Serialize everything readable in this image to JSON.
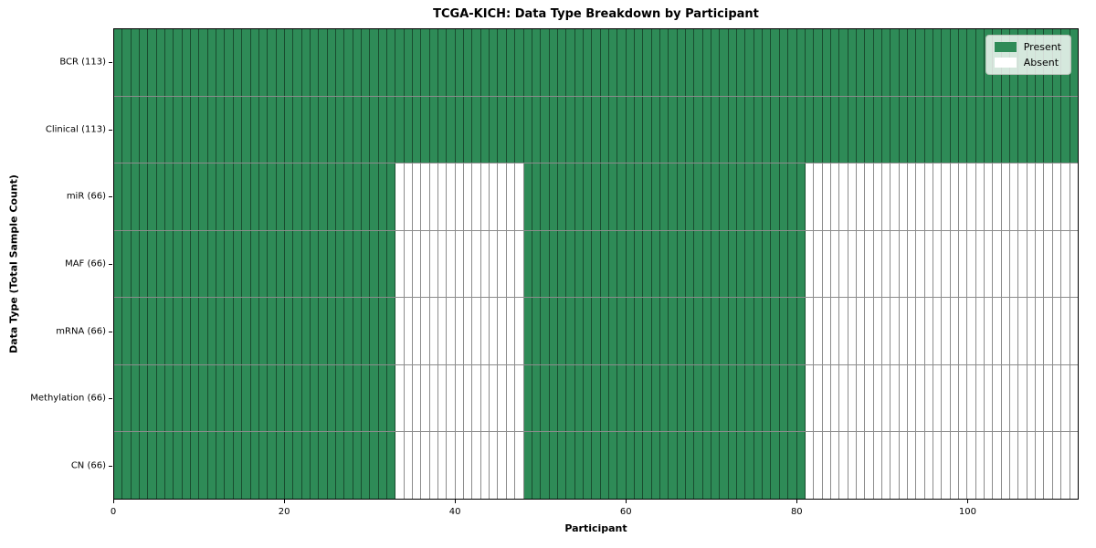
{
  "chart_data": {
    "type": "heatmap",
    "title": "TCGA-KICH: Data Type Breakdown by Participant",
    "xlabel": "Participant",
    "ylabel": "Data Type (Total Sample Count)",
    "n_participants": 113,
    "x_axis": {
      "min": 0,
      "max": 113,
      "ticks": [
        0,
        20,
        40,
        60,
        80,
        100
      ]
    },
    "rows": [
      {
        "label": "BCR (113)",
        "total": 113,
        "present_segments": [
          [
            0,
            113
          ]
        ]
      },
      {
        "label": "Clinical (113)",
        "total": 113,
        "present_segments": [
          [
            0,
            113
          ]
        ]
      },
      {
        "label": "miR (66)",
        "total": 66,
        "present_segments": [
          [
            0,
            33
          ],
          [
            48,
            81
          ]
        ]
      },
      {
        "label": "MAF (66)",
        "total": 66,
        "present_segments": [
          [
            0,
            33
          ],
          [
            48,
            81
          ]
        ]
      },
      {
        "label": "mRNA (66)",
        "total": 66,
        "present_segments": [
          [
            0,
            33
          ],
          [
            48,
            81
          ]
        ]
      },
      {
        "label": "Methylation (66)",
        "total": 66,
        "present_segments": [
          [
            0,
            33
          ],
          [
            48,
            81
          ]
        ]
      },
      {
        "label": "CN (66)",
        "total": 66,
        "present_segments": [
          [
            0,
            33
          ],
          [
            48,
            81
          ]
        ]
      }
    ],
    "legend": {
      "position": "upper right",
      "items": [
        {
          "name": "present",
          "label": "Present",
          "color": "#2e8b57"
        },
        {
          "name": "absent",
          "label": "Absent",
          "color": "#ffffff"
        }
      ]
    },
    "colors": {
      "present": "#2e8b57",
      "absent": "#ffffff",
      "cell_border": "rgba(0,0,0,0.45)",
      "spine": "#000000"
    },
    "grid": "off"
  }
}
